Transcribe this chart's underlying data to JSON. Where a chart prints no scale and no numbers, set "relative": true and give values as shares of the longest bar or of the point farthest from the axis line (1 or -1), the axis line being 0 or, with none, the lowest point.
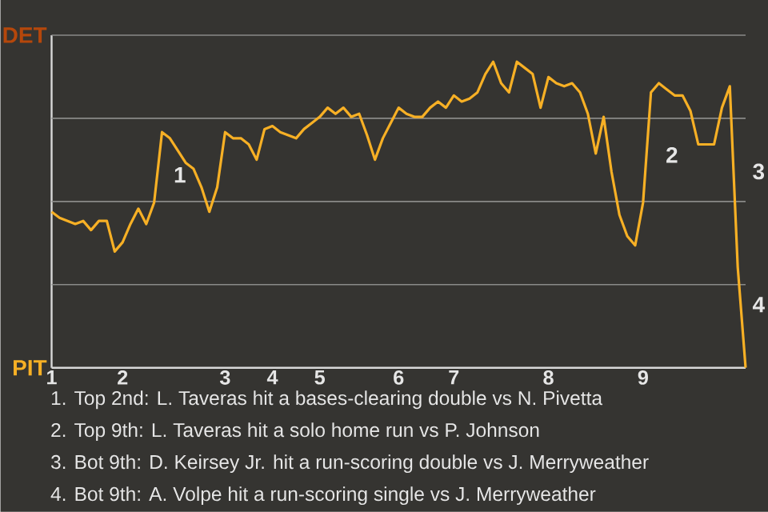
{
  "chart_data": {
    "type": "line",
    "relative": true,
    "categories": [
      "1",
      null,
      null,
      null,
      null,
      null,
      null,
      null,
      null,
      "2",
      null,
      null,
      null,
      null,
      null,
      null,
      null,
      null,
      null,
      null,
      null,
      null,
      "3",
      null,
      null,
      null,
      null,
      null,
      "4",
      null,
      null,
      null,
      null,
      null,
      "5",
      null,
      null,
      null,
      null,
      null,
      null,
      null,
      null,
      null,
      "6",
      null,
      null,
      null,
      null,
      null,
      null,
      "7",
      null,
      null,
      null,
      null,
      null,
      null,
      null,
      null,
      null,
      null,
      null,
      "8",
      null,
      null,
      null,
      null,
      null,
      null,
      null,
      null,
      null,
      null,
      null,
      "9",
      null,
      null,
      null,
      null,
      null,
      null,
      null,
      null,
      null,
      null,
      null,
      null,
      null
    ],
    "series": [
      {
        "color": "#f7b025",
        "values": [
          0.51,
          0.49,
          0.48,
          0.47,
          0.48,
          0.45,
          0.48,
          0.48,
          0.38,
          0.41,
          0.47,
          0.52,
          0.47,
          0.54,
          0.77,
          0.75,
          0.71,
          0.67,
          0.65,
          0.59,
          0.51,
          0.59,
          0.77,
          0.75,
          0.75,
          0.73,
          0.68,
          0.78,
          0.79,
          0.77,
          0.76,
          0.75,
          0.78,
          0.8,
          0.82,
          0.85,
          0.83,
          0.85,
          0.82,
          0.83,
          0.76,
          0.68,
          0.75,
          0.8,
          0.85,
          0.83,
          0.82,
          0.82,
          0.85,
          0.87,
          0.85,
          0.89,
          0.87,
          0.88,
          0.9,
          0.96,
          1,
          0.93,
          0.9,
          1,
          0.98,
          0.96,
          0.85,
          0.95,
          0.93,
          0.92,
          0.93,
          0.9,
          0.83,
          0.7,
          0.82,
          0.64,
          0.5,
          0.43,
          0.4,
          0.54,
          0.9,
          0.93,
          0.91,
          0.89,
          0.89,
          0.84,
          0.73,
          0.73,
          0.73,
          0.85,
          0.92,
          0.33,
          0
        ]
      }
    ],
    "grid": "y",
    "annotations": [
      "DET",
      "PIT",
      "1",
      "2",
      "3",
      "4",
      "1. Top 2nd: L. Taveras hit a bases-clearing double vs N. Pivetta",
      "2. Top 9th: L. Taveras hit a solo home run vs P. Johnson",
      "3. Bot 9th: D. Keirsey Jr. hit a run-scoring double vs J. Merryweather",
      "4. Bot 9th: A. Volpe hit a run-scoring single vs J. Merryweather"
    ]
  }
}
